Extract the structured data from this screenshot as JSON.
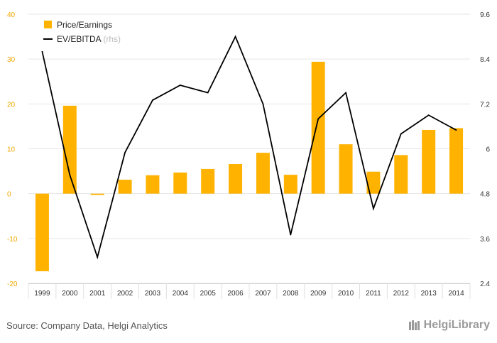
{
  "chart_data": {
    "type": "bar",
    "categories": [
      "1999",
      "2000",
      "2001",
      "2002",
      "2003",
      "2004",
      "2005",
      "2006",
      "2007",
      "2008",
      "2009",
      "2010",
      "2011",
      "2012",
      "2013",
      "2014"
    ],
    "series": [
      {
        "name": "Price/Earnings",
        "type": "bar",
        "axis": "left",
        "color": "#FFB300",
        "values": [
          -17.3,
          19.6,
          -0.3,
          3.1,
          4.1,
          4.7,
          5.5,
          6.6,
          9.1,
          4.2,
          29.4,
          11.0,
          4.9,
          8.6,
          14.2,
          14.6
        ]
      },
      {
        "name": "EV/EBITDA",
        "legend_suffix": "(rhs)",
        "type": "line",
        "axis": "right",
        "color": "#000000",
        "values": [
          8.6,
          5.3,
          3.1,
          5.9,
          7.3,
          7.7,
          7.5,
          9.0,
          7.2,
          3.7,
          6.8,
          7.5,
          4.4,
          6.4,
          6.9,
          6.5
        ]
      }
    ],
    "y_left": {
      "min": -20,
      "max": 40,
      "ticks": [
        "-20",
        "-10",
        "0",
        "10",
        "20",
        "30",
        "40"
      ]
    },
    "y_right": {
      "min": 2.4,
      "max": 9.6,
      "ticks": [
        "2.4",
        "3.6",
        "4.8",
        "6",
        "7.2",
        "8.4",
        "9.6"
      ]
    },
    "grid": true,
    "legend_position": "top-left"
  },
  "source_text": "Source: Company Data, Helgi Analytics",
  "brand": {
    "name": "HelgiLibrary",
    "icon": "bookshelf-icon"
  },
  "colors": {
    "bar": "#FFB300",
    "line": "#000000",
    "left_ticks": "#F0A800",
    "grid": "#E6E6E6"
  }
}
